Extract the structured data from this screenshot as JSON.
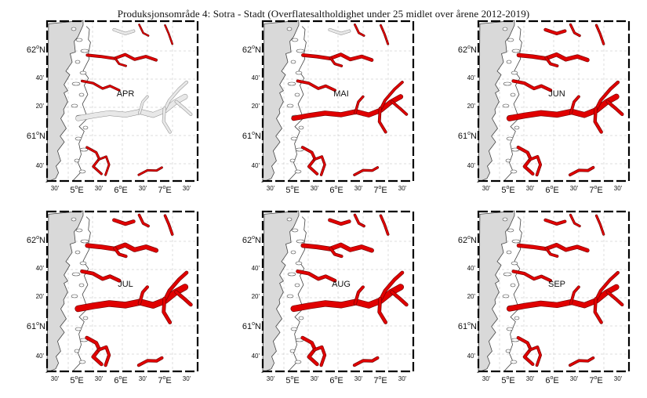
{
  "title": "Produksjonsområde 4: Sotra - Stadt (Overflatesaltholdighet under 25 midlet over årene 2012-2019)",
  "panels": [
    {
      "month": "APR",
      "intensity": 0.15
    },
    {
      "month": "MAI",
      "intensity": 0.45
    },
    {
      "month": "JUN",
      "intensity": 0.75
    },
    {
      "month": "JUL",
      "intensity": 1.0
    },
    {
      "month": "AUG",
      "intensity": 0.95
    },
    {
      "month": "SEP",
      "intensity": 0.7
    }
  ],
  "lat_labels": [
    "62",
    "40'",
    "20'",
    "61",
    "40'"
  ],
  "lat_unit": "N",
  "lon_labels": [
    "30'",
    "5",
    "30'",
    "6",
    "30'",
    "7",
    "30'"
  ],
  "lon_unit": "E",
  "degree_symbol": "o",
  "colors": {
    "land": "#d9d9d9",
    "coast": "#444444",
    "low_salinity": "#e00000",
    "fjord_edge": "#6b0000",
    "frame": "#000000",
    "grid": "#bbbbbb"
  }
}
